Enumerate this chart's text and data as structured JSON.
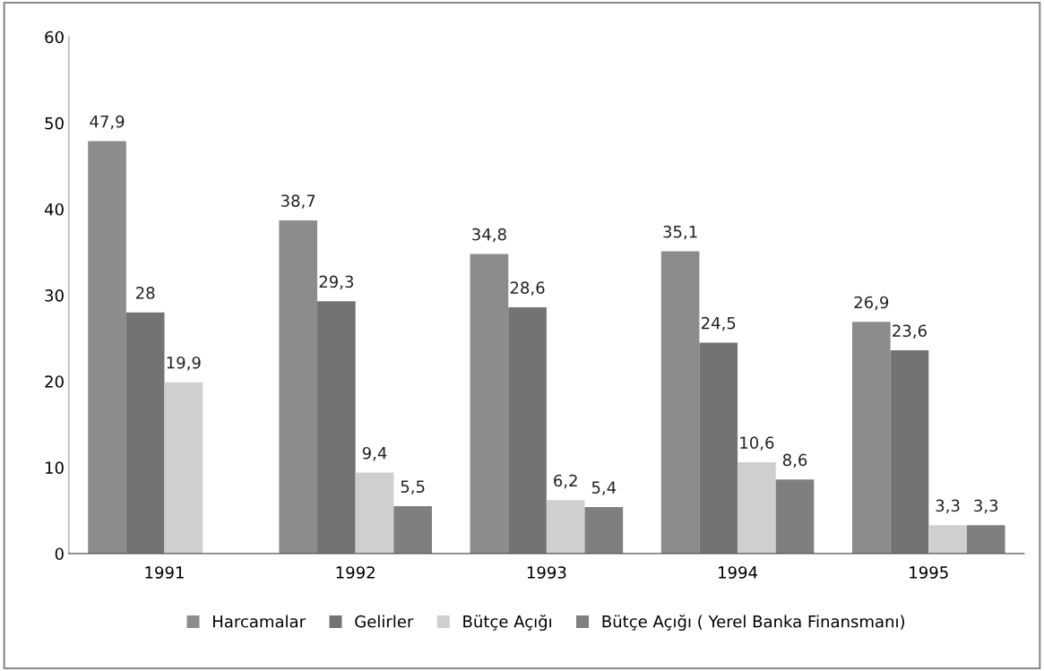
{
  "chart_data": {
    "type": "bar",
    "categories": [
      "1991",
      "1992",
      "1993",
      "1994",
      "1995"
    ],
    "series": [
      {
        "name": "Harcamalar",
        "color": "#8c8c8c",
        "values": [
          47.9,
          38.7,
          34.8,
          35.1,
          26.9
        ],
        "value_labels": [
          "47,9",
          "38,7",
          "34,8",
          "35,1",
          "26,9"
        ]
      },
      {
        "name": "Gelirler",
        "color": "#737373",
        "values": [
          28,
          29.3,
          28.6,
          24.5,
          23.6
        ],
        "value_labels": [
          "28",
          "29,3",
          "28,6",
          "24,5",
          "23,6"
        ]
      },
      {
        "name": "Bütçe Açığı",
        "color": "#cfcfcf",
        "values": [
          19.9,
          9.4,
          6.2,
          10.6,
          3.3
        ],
        "value_labels": [
          "19,9",
          "9,4",
          "6,2",
          "10,6",
          "3,3"
        ]
      },
      {
        "name": "Bütçe Açığı ( Yerel Banka Finansmanı)",
        "color": "#7f7f7f",
        "values": [
          null,
          5.5,
          5.4,
          8.6,
          3.3
        ],
        "value_labels": [
          null,
          "5,5",
          "5,4",
          "8,6",
          "3,3"
        ]
      }
    ],
    "ylim": [
      0,
      60
    ],
    "yticks": [
      0,
      10,
      20,
      30,
      40,
      50,
      60
    ],
    "grid": false,
    "legend": "bottom"
  }
}
